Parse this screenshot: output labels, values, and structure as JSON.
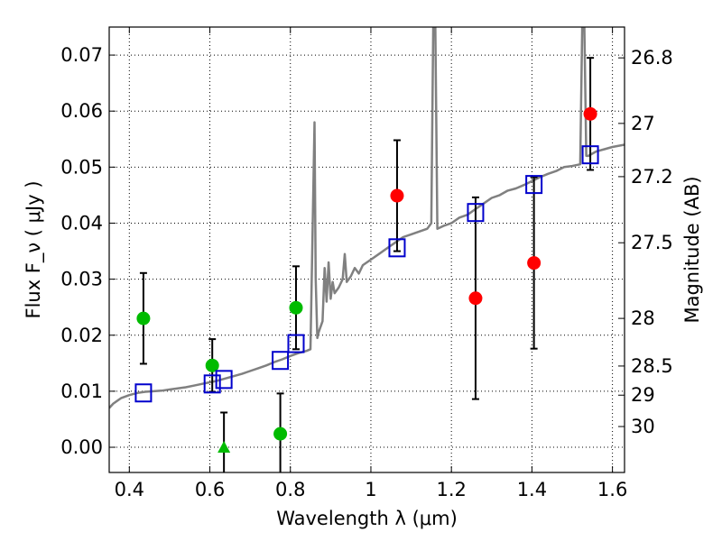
{
  "chart_data": {
    "type": "scatter",
    "xlabel": "Wavelength  λ (μm)",
    "ylabel": "Flux  F_ν  ( μJy )",
    "ylabel_right": "Magnitude (AB)",
    "xlim": [
      0.35,
      1.63
    ],
    "ylim": [
      -0.0045,
      0.075
    ],
    "grid": true,
    "x_ticks": [
      0.4,
      0.6,
      0.8,
      1.0,
      1.2,
      1.4,
      1.6
    ],
    "x_tick_labels": [
      "0.4",
      "0.6",
      "0.8",
      "1",
      "1.2",
      "1.4",
      "1.6"
    ],
    "y_ticks": [
      0.0,
      0.01,
      0.02,
      0.03,
      0.04,
      0.05,
      0.06,
      0.07
    ],
    "y_tick_labels": [
      "0.00",
      "0.01",
      "0.02",
      "0.03",
      "0.04",
      "0.05",
      "0.06",
      "0.07"
    ],
    "right_ticks": [
      {
        "label": "26.8",
        "flux": 0.0695
      },
      {
        "label": "27",
        "flux": 0.0578
      },
      {
        "label": "27.2",
        "flux": 0.0483
      },
      {
        "label": "27.5",
        "flux": 0.0365
      },
      {
        "label": "28",
        "flux": 0.023
      },
      {
        "label": "28.5",
        "flux": 0.0145
      },
      {
        "label": "29",
        "flux": 0.0093
      },
      {
        "label": "30",
        "flux": 0.0037
      }
    ],
    "model_spectrum": {
      "color": "#808080",
      "points": [
        [
          0.35,
          0.007
        ],
        [
          0.36,
          0.0078
        ],
        [
          0.38,
          0.0088
        ],
        [
          0.4,
          0.0093
        ],
        [
          0.42,
          0.0097
        ],
        [
          0.44,
          0.0099
        ],
        [
          0.46,
          0.01
        ],
        [
          0.48,
          0.0101
        ],
        [
          0.5,
          0.0103
        ],
        [
          0.52,
          0.0105
        ],
        [
          0.54,
          0.0107
        ],
        [
          0.56,
          0.011
        ],
        [
          0.58,
          0.0113
        ],
        [
          0.6,
          0.0116
        ],
        [
          0.62,
          0.0119
        ],
        [
          0.64,
          0.0123
        ],
        [
          0.66,
          0.0127
        ],
        [
          0.68,
          0.0131
        ],
        [
          0.7,
          0.0136
        ],
        [
          0.72,
          0.0141
        ],
        [
          0.74,
          0.0146
        ],
        [
          0.76,
          0.0152
        ],
        [
          0.78,
          0.0157
        ],
        [
          0.8,
          0.0163
        ],
        [
          0.82,
          0.0168
        ],
        [
          0.84,
          0.0172
        ],
        [
          0.85,
          0.0175
        ],
        [
          0.855,
          0.038
        ],
        [
          0.86,
          0.058
        ],
        [
          0.863,
          0.03
        ],
        [
          0.867,
          0.0195
        ],
        [
          0.87,
          0.0205
        ],
        [
          0.88,
          0.0225
        ],
        [
          0.885,
          0.032
        ],
        [
          0.89,
          0.026
        ],
        [
          0.895,
          0.033
        ],
        [
          0.9,
          0.0265
        ],
        [
          0.905,
          0.0295
        ],
        [
          0.91,
          0.0275
        ],
        [
          0.92,
          0.0285
        ],
        [
          0.93,
          0.03
        ],
        [
          0.935,
          0.0345
        ],
        [
          0.94,
          0.0295
        ],
        [
          0.95,
          0.0305
        ],
        [
          0.96,
          0.032
        ],
        [
          0.97,
          0.031
        ],
        [
          0.98,
          0.0325
        ],
        [
          1.0,
          0.0335
        ],
        [
          1.02,
          0.0345
        ],
        [
          1.04,
          0.0355
        ],
        [
          1.06,
          0.0365
        ],
        [
          1.08,
          0.0375
        ],
        [
          1.1,
          0.038
        ],
        [
          1.12,
          0.0385
        ],
        [
          1.14,
          0.039
        ],
        [
          1.15,
          0.04
        ],
        [
          1.155,
          0.076
        ],
        [
          1.16,
          0.076
        ],
        [
          1.165,
          0.039
        ],
        [
          1.18,
          0.0395
        ],
        [
          1.2,
          0.04
        ],
        [
          1.22,
          0.041
        ],
        [
          1.24,
          0.0415
        ],
        [
          1.26,
          0.0425
        ],
        [
          1.28,
          0.0435
        ],
        [
          1.3,
          0.0445
        ],
        [
          1.32,
          0.045
        ],
        [
          1.34,
          0.0458
        ],
        [
          1.36,
          0.0462
        ],
        [
          1.38,
          0.0468
        ],
        [
          1.4,
          0.0475
        ],
        [
          1.42,
          0.0482
        ],
        [
          1.44,
          0.0488
        ],
        [
          1.46,
          0.0493
        ],
        [
          1.48,
          0.05
        ],
        [
          1.5,
          0.0502
        ],
        [
          1.52,
          0.0505
        ],
        [
          1.525,
          0.076
        ],
        [
          1.53,
          0.076
        ],
        [
          1.535,
          0.052
        ],
        [
          1.54,
          0.052
        ],
        [
          1.56,
          0.0528
        ],
        [
          1.58,
          0.0532
        ],
        [
          1.6,
          0.0536
        ],
        [
          1.63,
          0.054
        ]
      ]
    },
    "series": [
      {
        "marker": "circle",
        "color": "#00bb00",
        "points": [
          {
            "x": 0.435,
            "y": 0.023,
            "err": 0.0081
          },
          {
            "x": 0.606,
            "y": 0.0146,
            "err": 0.0047
          },
          {
            "x": 0.775,
            "y": 0.0024,
            "err": 0.0072
          },
          {
            "x": 0.814,
            "y": 0.0249,
            "err": 0.0074
          }
        ]
      },
      {
        "marker": "triangle",
        "color": "#00bb00",
        "points": [
          {
            "x": 0.635,
            "y": 0.0,
            "err": 0.0062
          }
        ]
      },
      {
        "marker": "circle",
        "color": "#ff0000",
        "points": [
          {
            "x": 1.065,
            "y": 0.0449,
            "err": 0.0099
          },
          {
            "x": 1.26,
            "y": 0.0266,
            "err": 0.018
          },
          {
            "x": 1.405,
            "y": 0.0329,
            "err": 0.0153
          },
          {
            "x": 1.545,
            "y": 0.0595,
            "err": 0.01
          }
        ]
      },
      {
        "marker": "square",
        "color": "#0000cc",
        "points": [
          {
            "x": 0.435,
            "y": 0.0097
          },
          {
            "x": 0.606,
            "y": 0.0113
          },
          {
            "x": 0.635,
            "y": 0.0121
          },
          {
            "x": 0.775,
            "y": 0.0155
          },
          {
            "x": 0.814,
            "y": 0.0185
          },
          {
            "x": 1.065,
            "y": 0.0356
          },
          {
            "x": 1.26,
            "y": 0.0419
          },
          {
            "x": 1.405,
            "y": 0.0469
          },
          {
            "x": 1.545,
            "y": 0.0522
          }
        ]
      }
    ]
  }
}
